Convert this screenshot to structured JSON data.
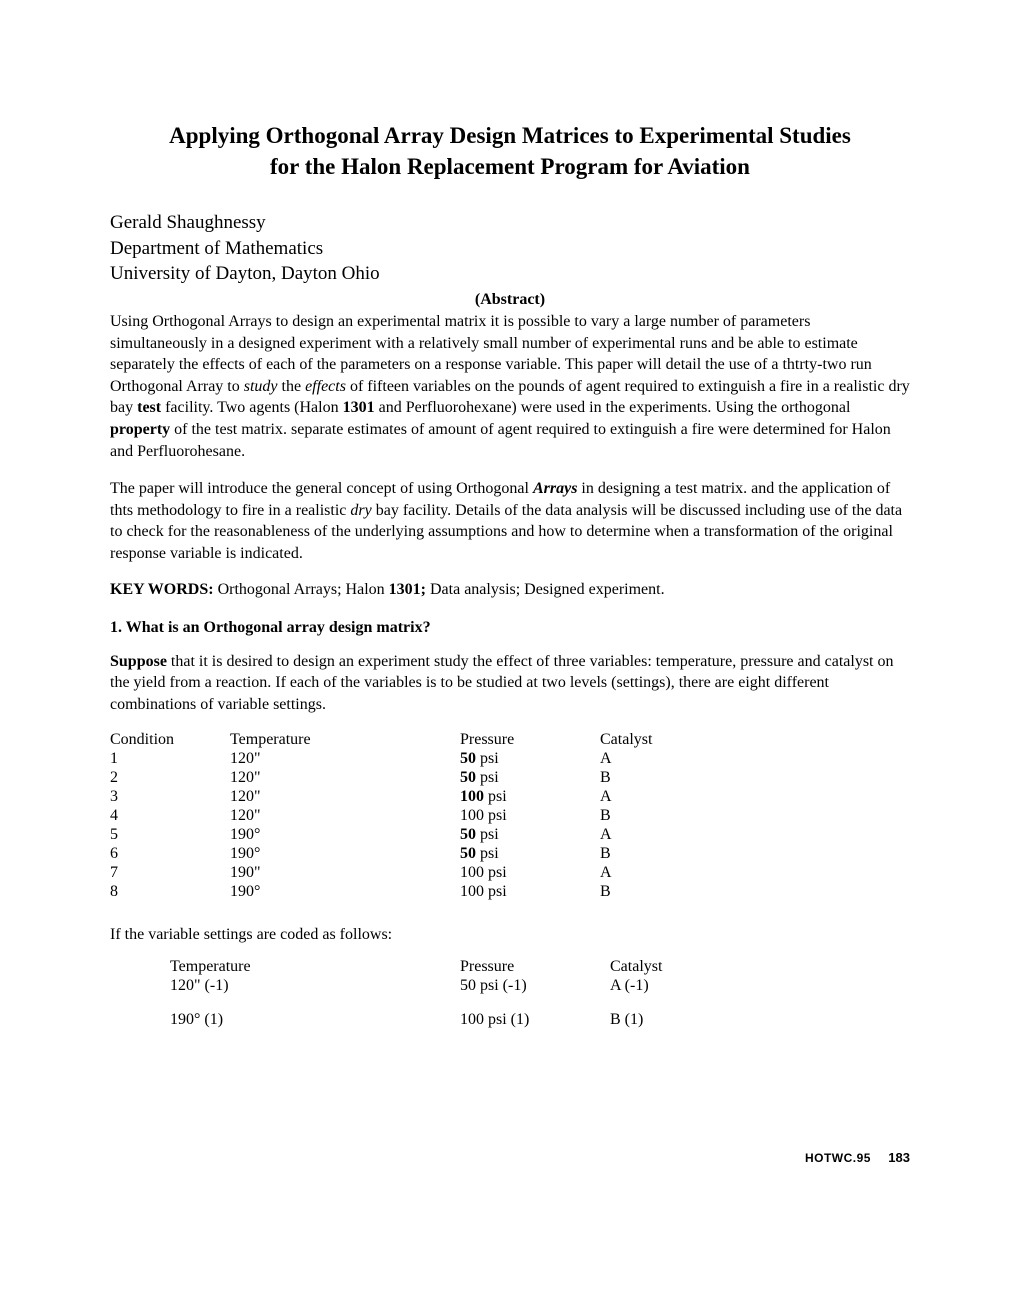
{
  "title_line1": "Applying Orthogonal Array Design Matrices to Experimental Studies",
  "title_line2": "for the Halon Replacement Program for Aviation",
  "author": {
    "name": "Gerald Shaughnessy",
    "dept": "Department of Mathematics",
    "univ": "University of Dayton, Dayton Ohio"
  },
  "abstract_label": "(Abstract)",
  "abstract_p1_a": "Using Orthogonal Arrays to design an experimental matrix it is possible to vary a large number of parameters simultaneously in a designed experiment with a relatively small number of experimental runs and be able to estimate separately the effects of each of the parameters on a response variable.  This paper will detail the use of a thtrty-two run Orthogonal Array to ",
  "abstract_p1_study": "study",
  "abstract_p1_b": " the ",
  "abstract_p1_effects": "effects",
  "abstract_p1_c": " of fifteen variables on the pounds of agent required to extinguish a fire in a realistic dry bay ",
  "abstract_p1_test": "test",
  "abstract_p1_d": " facility.  Two agents (Halon ",
  "abstract_p1_1301": "1301",
  "abstract_p1_e": " and Perfluorohexane) were used in the experiments.  Using the orthogonal ",
  "abstract_p1_property": "property",
  "abstract_p1_f": " of the test matrix. separate estimates of amount of agent required to extinguish a fire were determined for Halon and Perfluorohesane.",
  "abstract_p2_a": "The paper will introduce the general concept of using Orthogonal ",
  "abstract_p2_arrays": "Arrays",
  "abstract_p2_b": " in designing a test matrix. and the application of thts methodology to fire in a realistic ",
  "abstract_p2_dry": "dry",
  "abstract_p2_c": " bay facility.   Details of the data analysis will be discussed including use of the data to check for the reasonableness of the underlying assumptions and how to determine when a transformation of the original response variable is indicated.",
  "keywords_label": "KEY WORDS:",
  "keywords_a": "   Orthogonal Arrays; Halon ",
  "keywords_1301": "1301;",
  "keywords_b": " Data analysis; Designed experiment.",
  "section1_heading": "1.  What is an Orthogonal array design matrix?",
  "section1_p_suppose": "Suppose",
  "section1_p_body": " that it is desired to design an experiment study the effect of three variables: temperature, pressure and catalyst on the yield from a reaction.  If each of the variables is to be studied at two levels (settings), there are eight different combinations of variable settings.",
  "conditions_table": {
    "headers": {
      "cond": "Condition",
      "temp": "Temperature",
      "pres": "Pressure",
      "cat": "Catalyst"
    },
    "rows": [
      {
        "cond": "1",
        "temp": "120\"",
        "pres": "50 psi",
        "cat": "A"
      },
      {
        "cond": "2",
        "temp": "120\"",
        "pres": "50 psi",
        "cat": "B"
      },
      {
        "cond": "3",
        "temp": "120\"",
        "pres": "100 psi",
        "cat": "A"
      },
      {
        "cond": "4",
        "temp": "120\"",
        "pres": "100 psi",
        "cat": "B"
      },
      {
        "cond": "5",
        "temp": "190°",
        "pres": "50 psi",
        "cat": "A"
      },
      {
        "cond": "6",
        "temp": "190°",
        "pres": "50 psi",
        "cat": "B"
      },
      {
        "cond": "7",
        "temp": "190\"",
        "pres": "100 psi",
        "cat": "A"
      },
      {
        "cond": "8",
        "temp": "190°",
        "pres": "100 psi",
        "cat": "B"
      }
    ]
  },
  "coded_intro": "If the variable settings are coded as follows:",
  "coded_table": {
    "headers": {
      "temp": "Temperature",
      "pres": "Pressure",
      "cat": "Catalyst"
    },
    "rows": [
      {
        "temp": "120\"   (-1)",
        "pres": "50 psi (-1)",
        "cat": "A (-1)"
      },
      {
        "temp": "190°   (1)",
        "pres": "100 psi (1)",
        "cat": "B (1)"
      }
    ]
  },
  "footer": {
    "code": "HOTWC.95",
    "page": "183"
  }
}
